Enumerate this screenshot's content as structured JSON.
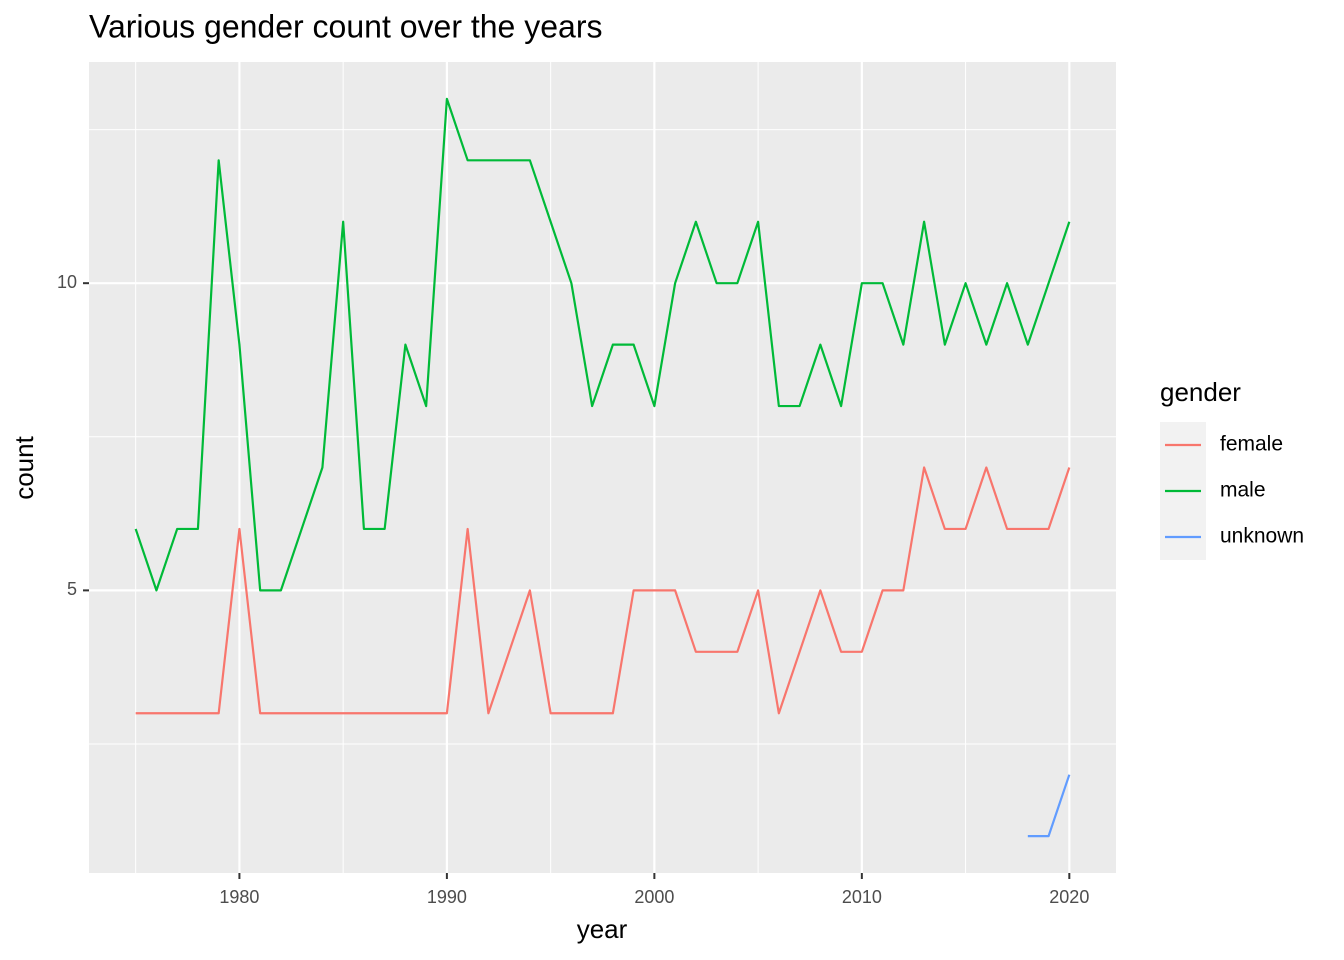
{
  "chart_data": {
    "type": "line",
    "title": "Various gender count over the years",
    "x_label": "year",
    "y_label": "count",
    "legend_title": "gender",
    "legend_position": "right",
    "x": [
      1975,
      1976,
      1977,
      1978,
      1979,
      1980,
      1981,
      1982,
      1983,
      1984,
      1985,
      1986,
      1987,
      1988,
      1989,
      1990,
      1991,
      1992,
      1993,
      1994,
      1995,
      1996,
      1997,
      1998,
      1999,
      2000,
      2001,
      2002,
      2003,
      2004,
      2005,
      2006,
      2007,
      2008,
      2009,
      2010,
      2011,
      2012,
      2013,
      2014,
      2015,
      2016,
      2017,
      2018,
      2019,
      2020
    ],
    "series": [
      {
        "name": "female",
        "color": "#F8766D",
        "values": [
          3,
          3,
          3,
          3,
          3,
          6,
          3,
          3,
          3,
          3,
          3,
          3,
          3,
          3,
          3,
          3,
          6,
          3,
          4,
          5,
          3,
          3,
          3,
          3,
          5,
          5,
          5,
          4,
          4,
          4,
          5,
          3,
          4,
          5,
          4,
          4,
          5,
          5,
          7,
          6,
          6,
          7,
          6,
          6,
          6,
          7
        ]
      },
      {
        "name": "male",
        "color": "#00BA38",
        "values": [
          6,
          5,
          6,
          6,
          12,
          9,
          5,
          5,
          6,
          7,
          11,
          6,
          6,
          9,
          8,
          13,
          12,
          12,
          12,
          12,
          11,
          10,
          8,
          9,
          9,
          8,
          10,
          11,
          10,
          10,
          11,
          8,
          8,
          9,
          8,
          10,
          10,
          9,
          11,
          9,
          10,
          9,
          10,
          9,
          10,
          11
        ]
      },
      {
        "name": "unknown",
        "color": "#619CFF",
        "values": [
          null,
          null,
          null,
          null,
          null,
          null,
          null,
          null,
          null,
          null,
          null,
          null,
          null,
          null,
          null,
          null,
          null,
          null,
          null,
          null,
          null,
          null,
          null,
          null,
          null,
          null,
          null,
          null,
          null,
          null,
          null,
          null,
          null,
          null,
          null,
          null,
          null,
          null,
          null,
          null,
          null,
          null,
          null,
          1,
          1,
          2
        ]
      }
    ],
    "xlim": [
      1972.75,
      2022.25
    ],
    "xticks": [
      1980,
      1990,
      2000,
      2010,
      2020
    ],
    "x_minor_grid": [
      1975,
      1985,
      1995,
      2005,
      2015
    ],
    "ylim": [
      0.4,
      13.6
    ],
    "yticks": [
      5,
      10
    ],
    "y_minor_grid": [
      2.5,
      7.5,
      12.5
    ],
    "grid": true
  }
}
